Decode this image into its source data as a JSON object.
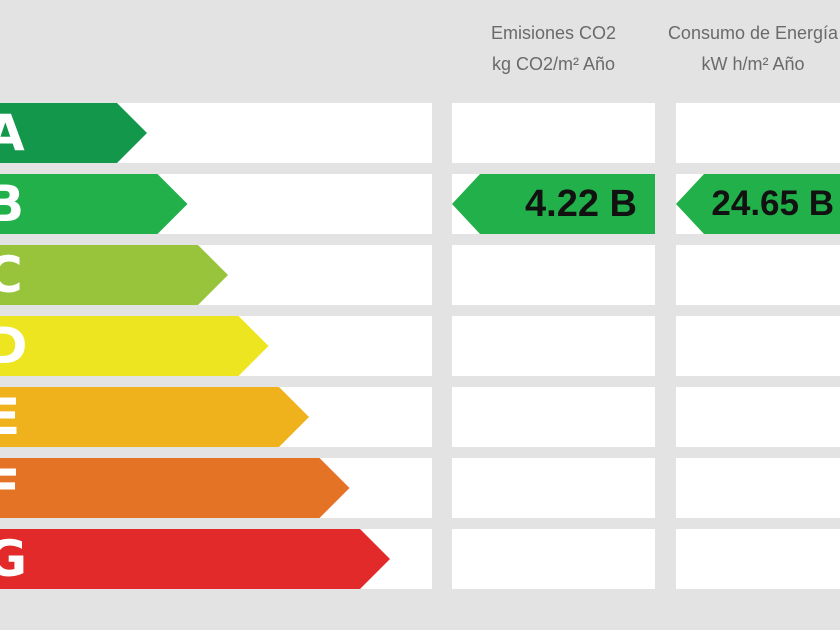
{
  "scale": [
    {
      "letter": "A",
      "color": "#13974a"
    },
    {
      "letter": "B",
      "color": "#22b04b"
    },
    {
      "letter": "C",
      "color": "#97c43b"
    },
    {
      "letter": "D",
      "color": "#ede51f"
    },
    {
      "letter": "E",
      "color": "#efb21c"
    },
    {
      "letter": "F",
      "color": "#e57325"
    },
    {
      "letter": "G",
      "color": "#e32a2a"
    }
  ],
  "columns": [
    {
      "title": "Emisiones CO2",
      "unit": "kg CO2/m² Año",
      "value": "4.22 B",
      "rating": "B"
    },
    {
      "title": "Consumo de Energía",
      "unit": "kW h/m² Año",
      "value": "24.65 B",
      "rating": "B"
    }
  ]
}
